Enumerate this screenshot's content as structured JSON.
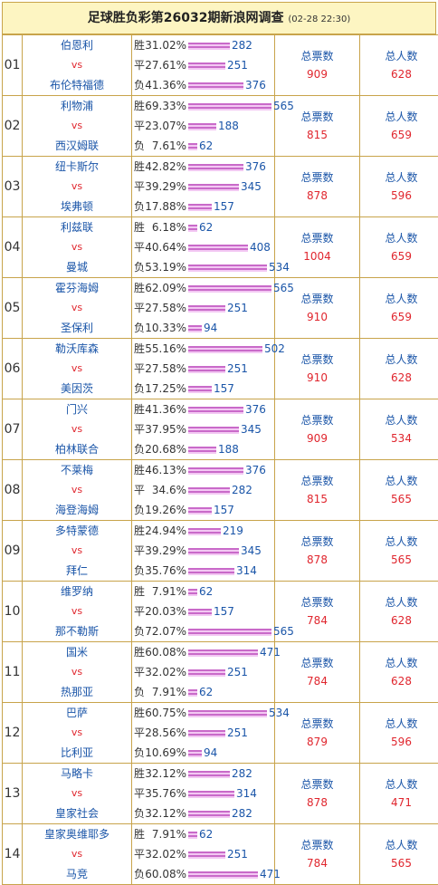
{
  "title": "足球胜负彩第26032期新浪网调查",
  "timestamp": "(02-28 22:30)",
  "labels": {
    "win": "胜",
    "draw": "平",
    "loss": "负",
    "vs": "vs",
    "total_votes": "总票数",
    "total_people": "总人数"
  },
  "colors": {
    "bar": "#c96ac9",
    "border": "#c8a44b",
    "title_bg": "#fdf5c2",
    "blue": "#1a55a8",
    "red": "#e0262e"
  },
  "matches": [
    {
      "no": "01",
      "home": "伯恩利",
      "away": "布伦特福德",
      "win_pct": "31.02%",
      "win": 282,
      "draw_pct": "27.61%",
      "draw": 251,
      "loss_pct": "41.36%",
      "loss": 376,
      "votes": "909",
      "people": "628"
    },
    {
      "no": "02",
      "home": "利物浦",
      "away": "西汉姆联",
      "win_pct": "69.33%",
      "win": 565,
      "draw_pct": "23.07%",
      "draw": 188,
      "loss_pct": "7.61%",
      "loss": 62,
      "votes": "815",
      "people": "659"
    },
    {
      "no": "03",
      "home": "纽卡斯尔",
      "away": "埃弗顿",
      "win_pct": "42.82%",
      "win": 376,
      "draw_pct": "39.29%",
      "draw": 345,
      "loss_pct": "17.88%",
      "loss": 157,
      "votes": "878",
      "people": "596"
    },
    {
      "no": "04",
      "home": "利兹联",
      "away": "曼城",
      "win_pct": "6.18%",
      "win": 62,
      "draw_pct": "40.64%",
      "draw": 408,
      "loss_pct": "53.19%",
      "loss": 534,
      "votes": "1004",
      "people": "659"
    },
    {
      "no": "05",
      "home": "霍芬海姆",
      "away": "圣保利",
      "win_pct": "62.09%",
      "win": 565,
      "draw_pct": "27.58%",
      "draw": 251,
      "loss_pct": "10.33%",
      "loss": 94,
      "votes": "910",
      "people": "659"
    },
    {
      "no": "06",
      "home": "勒沃库森",
      "away": "美因茨",
      "win_pct": "55.16%",
      "win": 502,
      "draw_pct": "27.58%",
      "draw": 251,
      "loss_pct": "17.25%",
      "loss": 157,
      "votes": "910",
      "people": "628"
    },
    {
      "no": "07",
      "home": "门兴",
      "away": "柏林联合",
      "win_pct": "41.36%",
      "win": 376,
      "draw_pct": "37.95%",
      "draw": 345,
      "loss_pct": "20.68%",
      "loss": 188,
      "votes": "909",
      "people": "534"
    },
    {
      "no": "08",
      "home": "不莱梅",
      "away": "海登海姆",
      "win_pct": "46.13%",
      "win": 376,
      "draw_pct": "34.6%",
      "draw": 282,
      "loss_pct": "19.26%",
      "loss": 157,
      "votes": "815",
      "people": "565"
    },
    {
      "no": "09",
      "home": "多特蒙德",
      "away": "拜仁",
      "win_pct": "24.94%",
      "win": 219,
      "draw_pct": "39.29%",
      "draw": 345,
      "loss_pct": "35.76%",
      "loss": 314,
      "votes": "878",
      "people": "565"
    },
    {
      "no": "10",
      "home": "维罗纳",
      "away": "那不勒斯",
      "win_pct": "7.91%",
      "win": 62,
      "draw_pct": "20.03%",
      "draw": 157,
      "loss_pct": "72.07%",
      "loss": 565,
      "votes": "784",
      "people": "628"
    },
    {
      "no": "11",
      "home": "国米",
      "away": "热那亚",
      "win_pct": "60.08%",
      "win": 471,
      "draw_pct": "32.02%",
      "draw": 251,
      "loss_pct": "7.91%",
      "loss": 62,
      "votes": "784",
      "people": "628"
    },
    {
      "no": "12",
      "home": "巴萨",
      "away": "比利亚",
      "win_pct": "60.75%",
      "win": 534,
      "draw_pct": "28.56%",
      "draw": 251,
      "loss_pct": "10.69%",
      "loss": 94,
      "votes": "879",
      "people": "596"
    },
    {
      "no": "13",
      "home": "马略卡",
      "away": "皇家社会",
      "win_pct": "32.12%",
      "win": 282,
      "draw_pct": "35.76%",
      "draw": 314,
      "loss_pct": "32.12%",
      "loss": 282,
      "votes": "878",
      "people": "471"
    },
    {
      "no": "14",
      "home": "皇家奥维耶多",
      "away": "马竞",
      "win_pct": "7.91%",
      "win": 62,
      "draw_pct": "32.02%",
      "draw": 251,
      "loss_pct": "60.08%",
      "loss": 471,
      "votes": "784",
      "people": "565"
    }
  ]
}
